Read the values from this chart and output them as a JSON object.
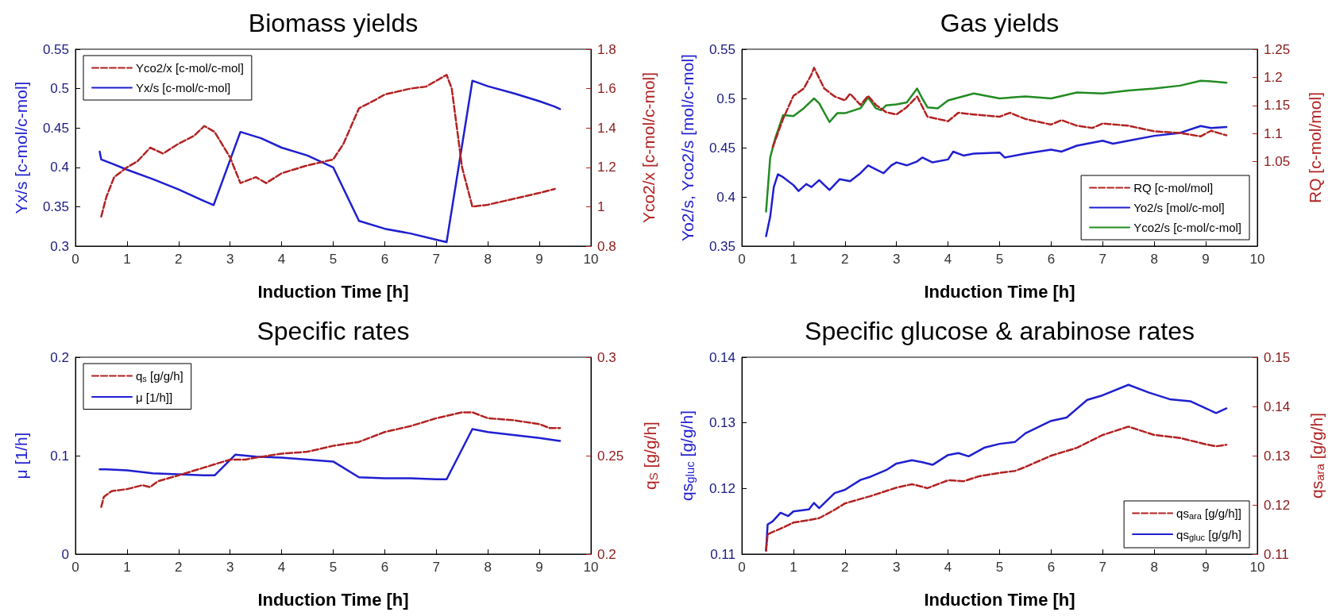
{
  "chart_data": [
    {
      "type": "line",
      "title": "Biomass yields",
      "xlabel": "Induction Time [h]",
      "ylabel": "Yx/s [c-mol/c-mol]",
      "y2label": "Yco2/x [c-mol/c-mol]",
      "xlim": [
        0,
        10
      ],
      "xticks": [
        0,
        1,
        2,
        3,
        4,
        5,
        6,
        7,
        8,
        9,
        10
      ],
      "ylim": [
        0.3,
        0.55
      ],
      "yticks": [
        0.3,
        0.35,
        0.4,
        0.45,
        0.5,
        0.55
      ],
      "y2lim": [
        0.8,
        1.8
      ],
      "y2ticks": [
        0.8,
        1,
        1.2,
        1.4,
        1.6,
        1.8
      ],
      "legend": "top left",
      "marker": "none",
      "grid": false,
      "series": [
        {
          "name": "Yco2/x [c-mol/c-mol]",
          "color": "#b22222",
          "axis": "y2",
          "line_style": "dashed",
          "x": [
            0.5,
            0.6,
            0.75,
            1,
            1.2,
            1.45,
            1.7,
            2,
            2.3,
            2.5,
            2.7,
            3,
            3.2,
            3.4,
            3.5,
            3.7,
            4,
            4.5,
            5,
            5.2,
            5.5,
            5.8,
            6,
            6.5,
            6.8,
            7,
            7.2,
            7.3,
            7.5,
            7.7,
            8,
            8.5,
            9,
            9.3
          ],
          "values": [
            0.95,
            1.05,
            1.15,
            1.2,
            1.23,
            1.3,
            1.27,
            1.32,
            1.36,
            1.41,
            1.38,
            1.25,
            1.12,
            1.14,
            1.15,
            1.12,
            1.17,
            1.21,
            1.24,
            1.32,
            1.5,
            1.54,
            1.57,
            1.6,
            1.61,
            1.64,
            1.67,
            1.6,
            1.2,
            1.0,
            1.01,
            1.04,
            1.07,
            1.09
          ]
        },
        {
          "name": "Yx/s [c-mol/c-mol]",
          "color": "#1f1fd0",
          "axis": "y",
          "line_style": "solid",
          "x": [
            0.47,
            0.5,
            0.7,
            1,
            1.5,
            2,
            2.5,
            2.68,
            3.2,
            3.6,
            4,
            4.5,
            5,
            5.5,
            6,
            6.5,
            7,
            7.2,
            7.7,
            8,
            8.5,
            9,
            9.3,
            9.4
          ],
          "values": [
            0.42,
            0.41,
            0.405,
            0.397,
            0.385,
            0.372,
            0.357,
            0.352,
            0.445,
            0.437,
            0.425,
            0.415,
            0.4,
            0.332,
            0.322,
            0.316,
            0.308,
            0.305,
            0.51,
            0.503,
            0.494,
            0.484,
            0.477,
            0.474
          ]
        }
      ]
    },
    {
      "type": "line",
      "title": "Gas yields",
      "xlabel": "Induction Time [h]",
      "ylabel": "Yo2/s, Yco2/s [mol/c-mol]",
      "y2label": "RQ [c-mol/mol]",
      "xlim": [
        0,
        10
      ],
      "xticks": [
        0,
        1,
        2,
        3,
        4,
        5,
        6,
        7,
        8,
        9,
        10
      ],
      "ylim": [
        0.35,
        0.55
      ],
      "yticks": [
        0.35,
        0.4,
        0.45,
        0.5,
        0.55
      ],
      "y2lim": [
        0.9,
        1.25
      ],
      "y2ticks": [
        1.05,
        1.1,
        1.15,
        1.2,
        1.25
      ],
      "legend": "bottom right",
      "marker": "none",
      "grid": false,
      "series": [
        {
          "name": "RQ [c-mol/mol]",
          "color": "#b22222",
          "axis": "y2",
          "line_style": "dashed",
          "x": [
            0.6,
            0.8,
            1,
            1.2,
            1.35,
            1.4,
            1.6,
            1.8,
            2,
            2.1,
            2.3,
            2.45,
            2.6,
            2.8,
            3,
            3.2,
            3.4,
            3.6,
            3.8,
            4,
            4.2,
            4.5,
            5,
            5.2,
            5.5,
            6,
            6.2,
            6.5,
            6.8,
            7,
            7.5,
            8,
            8.5,
            8.9,
            9.1,
            9.4
          ],
          "values": [
            1.076,
            1.126,
            1.167,
            1.18,
            1.205,
            1.217,
            1.18,
            1.166,
            1.159,
            1.171,
            1.151,
            1.167,
            1.151,
            1.138,
            1.134,
            1.147,
            1.166,
            1.13,
            1.126,
            1.122,
            1.137,
            1.134,
            1.13,
            1.137,
            1.126,
            1.116,
            1.124,
            1.114,
            1.11,
            1.118,
            1.114,
            1.104,
            1.101,
            1.095,
            1.105,
            1.097
          ]
        },
        {
          "name": "Yo2/s [mol/c-mol]",
          "color": "#1f1fd0",
          "axis": "y",
          "line_style": "solid",
          "x": [
            0.47,
            0.55,
            0.62,
            0.7,
            0.8,
            1,
            1.1,
            1.25,
            1.35,
            1.5,
            1.7,
            1.9,
            2.1,
            2.3,
            2.45,
            2.6,
            2.75,
            2.9,
            3,
            3.2,
            3.4,
            3.5,
            3.7,
            4,
            4.1,
            4.3,
            4.5,
            5,
            5.1,
            5.5,
            6,
            6.2,
            6.5,
            7,
            7.2,
            7.5,
            8,
            8.5,
            8.9,
            9.1,
            9.4
          ],
          "values": [
            0.36,
            0.38,
            0.41,
            0.423,
            0.42,
            0.412,
            0.406,
            0.413,
            0.41,
            0.417,
            0.407,
            0.418,
            0.416,
            0.424,
            0.432,
            0.428,
            0.424,
            0.432,
            0.435,
            0.432,
            0.436,
            0.44,
            0.435,
            0.438,
            0.446,
            0.442,
            0.444,
            0.445,
            0.44,
            0.444,
            0.448,
            0.446,
            0.452,
            0.457,
            0.454,
            0.457,
            0.462,
            0.465,
            0.472,
            0.47,
            0.471
          ]
        },
        {
          "name": "Yco2/s [c-mol/c-mol]",
          "color": "#228b22",
          "axis": "y",
          "line_style": "solid",
          "x": [
            0.47,
            0.55,
            0.65,
            0.8,
            1,
            1.2,
            1.4,
            1.5,
            1.7,
            1.85,
            2,
            2.3,
            2.45,
            2.6,
            2.7,
            2.8,
            3,
            3.2,
            3.4,
            3.5,
            3.6,
            3.8,
            4,
            4.5,
            5,
            5.5,
            6,
            6.5,
            7,
            7.5,
            8,
            8.5,
            8.9,
            9.2,
            9.4
          ],
          "values": [
            0.385,
            0.44,
            0.46,
            0.483,
            0.482,
            0.49,
            0.5,
            0.495,
            0.476,
            0.485,
            0.485,
            0.49,
            0.501,
            0.49,
            0.488,
            0.493,
            0.494,
            0.496,
            0.51,
            0.5,
            0.491,
            0.49,
            0.498,
            0.505,
            0.5,
            0.502,
            0.5,
            0.506,
            0.505,
            0.508,
            0.51,
            0.513,
            0.518,
            0.517,
            0.516
          ]
        }
      ]
    },
    {
      "type": "line",
      "title": "Specific rates",
      "xlabel": "Induction Time [h]",
      "ylabel": "μ [1/h]",
      "y2label": "q$_{S}$ [g/g/h]",
      "xlim": [
        0,
        10
      ],
      "xticks": [
        0,
        1,
        2,
        3,
        4,
        5,
        6,
        7,
        8,
        9,
        10
      ],
      "ylim": [
        0,
        0.2
      ],
      "yticks": [
        0,
        0.1,
        0.2
      ],
      "y2lim": [
        0.2,
        0.3
      ],
      "y2ticks": [
        0.2,
        0.25,
        0.3
      ],
      "legend": "top left",
      "marker": "none",
      "grid": false,
      "series": [
        {
          "name": "q$_{s}$ [g/g/h]",
          "color": "#b22222",
          "axis": "y2",
          "line_style": "dashed",
          "x": [
            0.5,
            0.55,
            0.7,
            1,
            1.3,
            1.45,
            1.6,
            2,
            2.5,
            3,
            3.3,
            3.5,
            4,
            4.5,
            5,
            5.5,
            6,
            6.5,
            7,
            7.5,
            7.7,
            8,
            8.5,
            9,
            9.2,
            9.4
          ],
          "values": [
            0.224,
            0.229,
            0.232,
            0.233,
            0.235,
            0.234,
            0.237,
            0.24,
            0.244,
            0.248,
            0.248,
            0.249,
            0.251,
            0.252,
            0.255,
            0.257,
            0.262,
            0.265,
            0.269,
            0.272,
            0.272,
            0.269,
            0.268,
            0.266,
            0.264,
            0.264
          ]
        },
        {
          "name": "μ [1/h]]",
          "color": "#1f1fd0",
          "axis": "y",
          "line_style": "solid",
          "x": [
            0.47,
            0.6,
            1,
            1.5,
            2,
            2.5,
            2.7,
            3.1,
            3.5,
            4,
            4.5,
            5,
            5.5,
            6,
            6.5,
            7,
            7.2,
            7.7,
            8,
            8.5,
            9,
            9.4
          ],
          "values": [
            0.086,
            0.086,
            0.085,
            0.082,
            0.081,
            0.08,
            0.08,
            0.101,
            0.099,
            0.098,
            0.096,
            0.094,
            0.078,
            0.077,
            0.077,
            0.076,
            0.076,
            0.127,
            0.124,
            0.121,
            0.118,
            0.115
          ]
        }
      ]
    },
    {
      "type": "line",
      "title": "Specific glucose & arabinose rates",
      "xlabel": "Induction Time [h]",
      "ylabel": "qs$_{gluc}$ [g/g/h]",
      "y2label": "qs$_{ara}$ [g/g/h]",
      "xlim": [
        0,
        10
      ],
      "xticks": [
        0,
        1,
        2,
        3,
        4,
        5,
        6,
        7,
        8,
        9,
        10
      ],
      "ylim": [
        0.11,
        0.14
      ],
      "yticks": [
        0.11,
        0.12,
        0.13,
        0.14
      ],
      "y2lim": [
        0.11,
        0.15
      ],
      "y2ticks": [
        0.11,
        0.12,
        0.13,
        0.14,
        0.15
      ],
      "legend": "bottom right",
      "marker": "none",
      "grid": false,
      "series": [
        {
          "name": "qs$_{ara}$ [g/g/h]]",
          "color": "#b22222",
          "axis": "y2",
          "line_style": "dashed",
          "x": [
            0.47,
            0.5,
            0.6,
            0.8,
            1,
            1.3,
            1.5,
            1.8,
            2,
            2.5,
            3,
            3.3,
            3.6,
            4,
            4.3,
            4.6,
            5,
            5.3,
            5.5,
            6,
            6.5,
            7,
            7.5,
            8,
            8.5,
            9,
            9.2,
            9.4
          ],
          "values": [
            0.1107,
            0.114,
            0.1145,
            0.1154,
            0.1164,
            0.1169,
            0.1173,
            0.119,
            0.1203,
            0.1218,
            0.1235,
            0.1242,
            0.1234,
            0.125,
            0.1248,
            0.1258,
            0.1265,
            0.1269,
            0.1277,
            0.13,
            0.1316,
            0.1342,
            0.1359,
            0.1342,
            0.1336,
            0.1323,
            0.1319,
            0.1322
          ]
        },
        {
          "name": "qs$_{gluc}$ [g/g/h]",
          "color": "#1f1fd0",
          "axis": "y",
          "line_style": "solid",
          "x": [
            0.47,
            0.5,
            0.6,
            0.75,
            0.9,
            1,
            1.3,
            1.4,
            1.5,
            1.8,
            2,
            2.3,
            2.5,
            2.8,
            3,
            3.3,
            3.5,
            3.7,
            4,
            4.2,
            4.4,
            4.7,
            5,
            5.3,
            5.5,
            6,
            6.3,
            6.7,
            7,
            7.5,
            7.9,
            8.3,
            8.7,
            9,
            9.2,
            9.4
          ],
          "values": [
            0.1105,
            0.1145,
            0.115,
            0.1163,
            0.1158,
            0.1165,
            0.1168,
            0.1178,
            0.117,
            0.1193,
            0.1198,
            0.1213,
            0.1218,
            0.1228,
            0.1238,
            0.1243,
            0.124,
            0.1236,
            0.1251,
            0.1254,
            0.1249,
            0.1262,
            0.1268,
            0.1271,
            0.1284,
            0.1303,
            0.1308,
            0.1335,
            0.1342,
            0.1358,
            0.1346,
            0.1336,
            0.1333,
            0.1322,
            0.1315,
            0.1322
          ]
        }
      ]
    }
  ]
}
